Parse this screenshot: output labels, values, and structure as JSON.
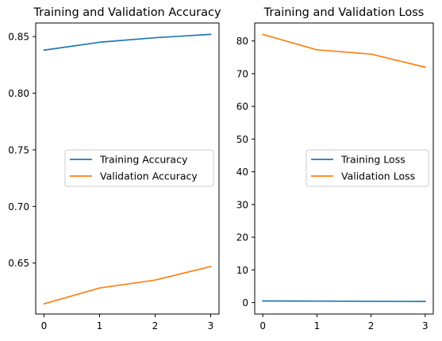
{
  "chart_data": [
    {
      "type": "line",
      "title": "Training and Validation Accuracy",
      "xlabel": "",
      "ylabel": "",
      "x": [
        0,
        1,
        2,
        3
      ],
      "xlim": [
        -0.15,
        3.15
      ],
      "ylim": [
        0.605,
        0.862
      ],
      "xticks": [
        "0",
        "1",
        "2",
        "3"
      ],
      "yticks": [
        "0.65",
        "0.70",
        "0.75",
        "0.80",
        "0.85"
      ],
      "grid": false,
      "legend_position": "center-right",
      "series": [
        {
          "name": "Training Accuracy",
          "color": "#1f77b4",
          "values": [
            0.838,
            0.845,
            0.849,
            0.852
          ]
        },
        {
          "name": "Validation Accuracy",
          "color": "#ff7f0e",
          "values": [
            0.614,
            0.628,
            0.635,
            0.647
          ]
        }
      ]
    },
    {
      "type": "line",
      "title": "Training and Validation Loss",
      "xlabel": "",
      "ylabel": "",
      "x": [
        0,
        1,
        2,
        3
      ],
      "xlim": [
        -0.15,
        3.15
      ],
      "ylim": [
        -3.5,
        85.5
      ],
      "xticks": [
        "0",
        "1",
        "2",
        "3"
      ],
      "yticks": [
        "0",
        "10",
        "20",
        "30",
        "40",
        "50",
        "60",
        "70",
        "80"
      ],
      "grid": false,
      "legend_position": "center-right",
      "series": [
        {
          "name": "Training Loss",
          "color": "#1f77b4",
          "values": [
            0.5,
            0.45,
            0.4,
            0.35
          ]
        },
        {
          "name": "Validation Loss",
          "color": "#ff7f0e",
          "values": [
            82.0,
            77.3,
            76.0,
            72.0
          ]
        }
      ]
    }
  ]
}
